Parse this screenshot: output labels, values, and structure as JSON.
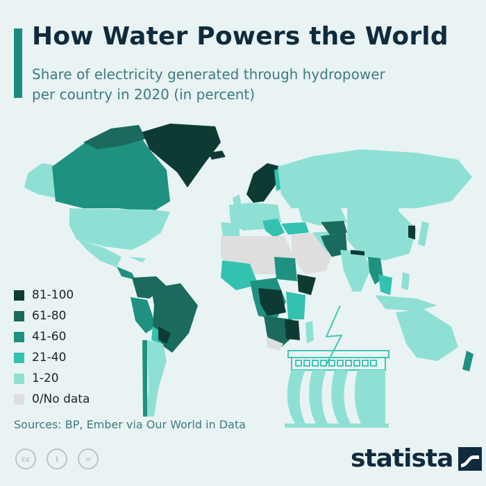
{
  "header": {
    "title": "How Water Powers the World",
    "subtitle": "Share of electricity generated through hydropower per country in 2020 (in percent)"
  },
  "colors": {
    "accent": "#1a8a7d",
    "background": "#e9f3f3",
    "ocean": "#e9f3f3"
  },
  "legend": [
    {
      "label": "81-100",
      "color": "#0d3b33"
    },
    {
      "label": "61-80",
      "color": "#1a6a5e"
    },
    {
      "label": "41-60",
      "color": "#1f9180"
    },
    {
      "label": "21-40",
      "color": "#33c2b0"
    },
    {
      "label": "1-20",
      "color": "#8fe0d4"
    },
    {
      "label": "0/No data",
      "color": "#dedede"
    }
  ],
  "sources": "Sources: BP, Ember via Our World in Data",
  "license_icons": [
    "cc-icon",
    "attribution-icon",
    "no-derivatives-icon"
  ],
  "license_glyphs": {
    "cc": "cc",
    "by": "i",
    "nd": "="
  },
  "brand": "statista"
}
